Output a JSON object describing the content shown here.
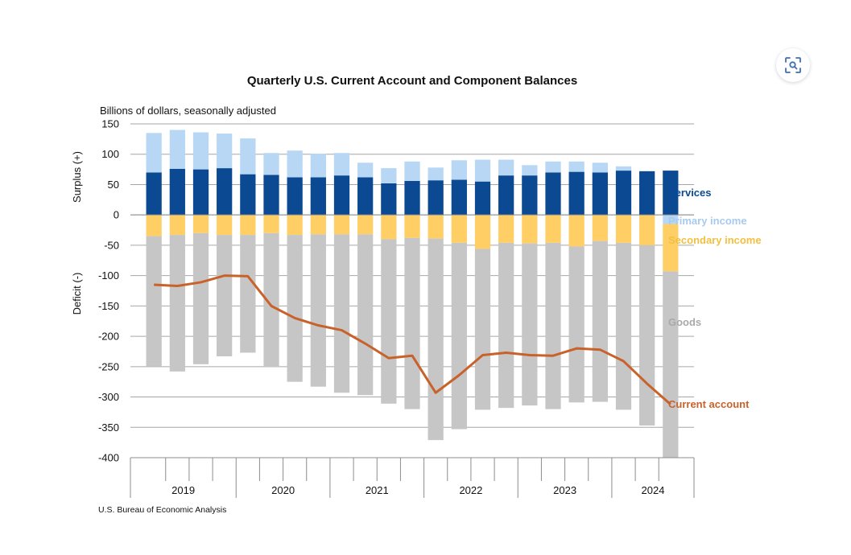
{
  "chart_data": {
    "type": "bar",
    "title": "Quarterly U.S. Current Account and Component Balances",
    "subtitle": "Billions of dollars, seasonally adjusted",
    "ylabel_top": "Surplus (+)",
    "ylabel_bottom": "Deficit (-)",
    "ylim": [
      -400,
      150
    ],
    "yticks": [
      150,
      100,
      50,
      0,
      -50,
      -100,
      -150,
      -200,
      -250,
      -300,
      -350,
      -400
    ],
    "grid": true,
    "years": [
      "2019",
      "2020",
      "2021",
      "2022",
      "2023",
      "2024"
    ],
    "categories": [
      "2019Q1",
      "2019Q2",
      "2019Q3",
      "2019Q4",
      "2020Q1",
      "2020Q2",
      "2020Q3",
      "2020Q4",
      "2021Q1",
      "2021Q2",
      "2021Q3",
      "2021Q4",
      "2022Q1",
      "2022Q2",
      "2022Q3",
      "2022Q4",
      "2023Q1",
      "2023Q2",
      "2023Q3",
      "2023Q4",
      "2024Q1",
      "2024Q2",
      "2024Q3"
    ],
    "series": [
      {
        "name": "Services",
        "color": "#0b4a92",
        "values": [
          70,
          76,
          75,
          77,
          67,
          66,
          62,
          62,
          65,
          62,
          52,
          56,
          57,
          58,
          55,
          65,
          65,
          70,
          71,
          70,
          73,
          72,
          73
        ]
      },
      {
        "name": "Primary income",
        "color": "#b7d7f5",
        "values": [
          65,
          64,
          61,
          57,
          59,
          36,
          44,
          39,
          37,
          24,
          25,
          32,
          21,
          32,
          36,
          26,
          17,
          18,
          17,
          16,
          7,
          0,
          -15
        ]
      },
      {
        "name": "Secondary income",
        "color": "#ffcf66",
        "values": [
          -35,
          -33,
          -30,
          -33,
          -33,
          -30,
          -33,
          -32,
          -32,
          -32,
          -40,
          -38,
          -39,
          -46,
          -56,
          -46,
          -47,
          -46,
          -52,
          -43,
          -46,
          -50,
          -78
        ]
      },
      {
        "name": "Goods",
        "color": "#c6c6c6",
        "values": [
          -215,
          -225,
          -216,
          -200,
          -194,
          -221,
          -242,
          -251,
          -261,
          -265,
          -271,
          -282,
          -332,
          -307,
          -265,
          -272,
          -267,
          -274,
          -257,
          -265,
          -275,
          -297,
          -307
        ]
      }
    ],
    "line": {
      "name": "Current account",
      "color": "#c9622a",
      "values": [
        -115,
        -117,
        -111,
        -100,
        -101,
        -150,
        -170,
        -182,
        -190,
        -212,
        -236,
        -232,
        -293,
        -264,
        -231,
        -227,
        -231,
        -232,
        -220,
        -222,
        -241,
        -278,
        -312
      ]
    },
    "source": "U.S. Bureau of Economic Analysis"
  },
  "ui": {
    "lens_icon": "visual-search-icon"
  }
}
